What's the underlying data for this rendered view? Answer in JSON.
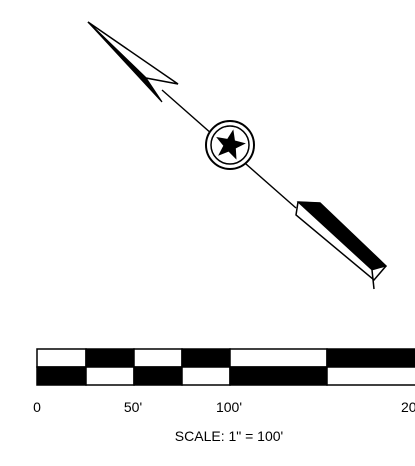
{
  "north_arrow": {
    "symbol": "star"
  },
  "scale_bar": {
    "tick_labels": [
      "0",
      "50'",
      "100'",
      "20"
    ],
    "caption": "SCALE: 1\" = 100'",
    "colors": {
      "fill": "#000000",
      "empty": "#ffffff"
    }
  }
}
